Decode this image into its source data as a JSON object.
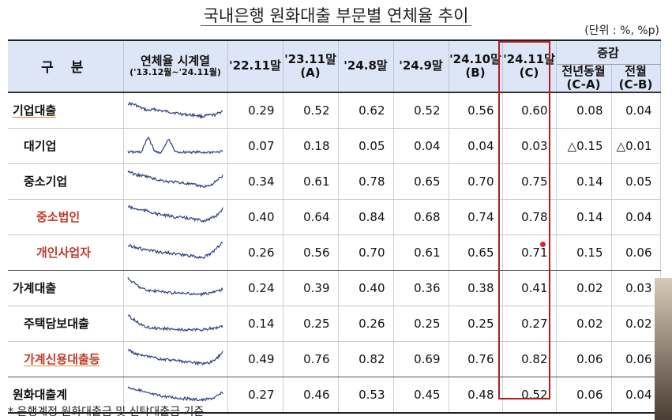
{
  "title": "국내은행 원화대출 부문별 연체율 추이",
  "unit": "(단위 : %, %p)",
  "header": {
    "col_category": "구  분",
    "col_series": "연체율 시계열",
    "col_series_sub": "('13.12월~'24.11월)",
    "periods": [
      {
        "label": "'22.11말",
        "sub": ""
      },
      {
        "label": "'23.11말",
        "sub": "(A)"
      },
      {
        "label": "'24.8말",
        "sub": ""
      },
      {
        "label": "'24.9말",
        "sub": ""
      },
      {
        "label": "'24.10말",
        "sub": "(B)"
      },
      {
        "label": "'24.11말",
        "sub": "(C)"
      }
    ],
    "change_group": "증감",
    "change_yoy": "전년동월",
    "change_yoy_sub": "(C-A)",
    "change_mom": "전월",
    "change_mom_sub": "(C-B)"
  },
  "rows": [
    {
      "label": "기업대출",
      "values": [
        "0.29",
        "0.52",
        "0.62",
        "0.52",
        "0.56",
        "0.60"
      ],
      "yoy": "0.08",
      "mom": "0.04"
    },
    {
      "label": "대기업",
      "values": [
        "0.07",
        "0.18",
        "0.05",
        "0.04",
        "0.04",
        "0.03"
      ],
      "yoy": "△0.15",
      "mom": "△0.01"
    },
    {
      "label": "중소기업",
      "values": [
        "0.34",
        "0.61",
        "0.78",
        "0.65",
        "0.70",
        "0.75"
      ],
      "yoy": "0.14",
      "mom": "0.05"
    },
    {
      "label": "중소법인",
      "values": [
        "0.40",
        "0.64",
        "0.84",
        "0.68",
        "0.74",
        "0.78"
      ],
      "yoy": "0.14",
      "mom": "0.04"
    },
    {
      "label": "개인사업자",
      "values": [
        "0.26",
        "0.56",
        "0.70",
        "0.61",
        "0.65",
        "0.71"
      ],
      "yoy": "0.15",
      "mom": "0.06"
    },
    {
      "label": "가계대출",
      "values": [
        "0.24",
        "0.39",
        "0.40",
        "0.36",
        "0.38",
        "0.41"
      ],
      "yoy": "0.02",
      "mom": "0.03"
    },
    {
      "label": "주택담보대출",
      "values": [
        "0.14",
        "0.25",
        "0.26",
        "0.25",
        "0.25",
        "0.27"
      ],
      "yoy": "0.02",
      "mom": "0.02"
    },
    {
      "label": "가계신용대출등",
      "values": [
        "0.49",
        "0.76",
        "0.82",
        "0.69",
        "0.76",
        "0.82"
      ],
      "yoy": "0.06",
      "mom": "0.06"
    },
    {
      "label": "원화대출계",
      "values": [
        "0.27",
        "0.46",
        "0.53",
        "0.45",
        "0.48",
        "0.52"
      ],
      "yoy": "0.06",
      "mom": "0.04"
    }
  ],
  "sparkline_color": "#2f3f82",
  "highlight_color": "#b21e1e",
  "footnote": "* 은행계정 원화대출금 및 신탁대출금 기준"
}
